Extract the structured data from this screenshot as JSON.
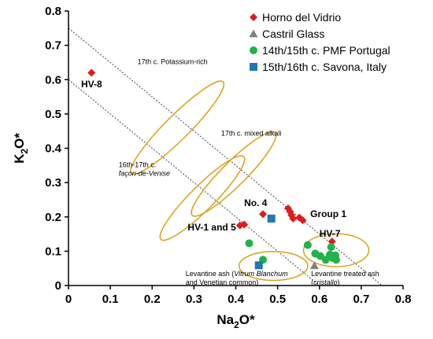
{
  "chart_data": {
    "type": "scatter",
    "xlim": [
      0,
      0.8
    ],
    "ylim": [
      0,
      0.8
    ],
    "xticks": [
      "0",
      "0.1",
      "0.2",
      "0.3",
      "0.4",
      "0.5",
      "0.6",
      "0.7",
      "0.8"
    ],
    "yticks": [
      "0",
      "0.1",
      "0.2",
      "0.3",
      "0.4",
      "0.5",
      "0.6",
      "0.7",
      "0.8"
    ],
    "xlabel": {
      "main": "Na",
      "sub": "2",
      "tail": "O*"
    },
    "ylabel": {
      "main": "K",
      "sub": "2",
      "tail": "O*"
    },
    "grid": false,
    "legend_position": "top-right",
    "series": [
      {
        "name": "Horno del Vidrio",
        "marker": "diamond",
        "color": "#e31a1c",
        "points": [
          {
            "x": 0.055,
            "y": 0.62
          },
          {
            "x": 0.41,
            "y": 0.175
          },
          {
            "x": 0.42,
            "y": 0.178
          },
          {
            "x": 0.465,
            "y": 0.208
          },
          {
            "x": 0.525,
            "y": 0.225
          },
          {
            "x": 0.53,
            "y": 0.215
          },
          {
            "x": 0.533,
            "y": 0.205
          },
          {
            "x": 0.537,
            "y": 0.195
          },
          {
            "x": 0.552,
            "y": 0.198
          },
          {
            "x": 0.56,
            "y": 0.19
          },
          {
            "x": 0.63,
            "y": 0.128
          }
        ]
      },
      {
        "name": "Castril Glass",
        "marker": "triangle",
        "color": "#808080",
        "points": [
          {
            "x": 0.588,
            "y": 0.058
          }
        ]
      },
      {
        "name": "14th/15th c. PMF Portugal",
        "marker": "circle",
        "color": "#22b14c",
        "points": [
          {
            "x": 0.432,
            "y": 0.123
          },
          {
            "x": 0.465,
            "y": 0.075
          },
          {
            "x": 0.572,
            "y": 0.118
          },
          {
            "x": 0.59,
            "y": 0.093
          },
          {
            "x": 0.602,
            "y": 0.086
          },
          {
            "x": 0.615,
            "y": 0.075
          },
          {
            "x": 0.625,
            "y": 0.09
          },
          {
            "x": 0.628,
            "y": 0.112
          },
          {
            "x": 0.632,
            "y": 0.08
          },
          {
            "x": 0.638,
            "y": 0.088
          },
          {
            "x": 0.64,
            "y": 0.075
          }
        ]
      },
      {
        "name": "15th/16th c. Savona, Italy",
        "marker": "square",
        "color": "#1f77b4",
        "points": [
          {
            "x": 0.485,
            "y": 0.195
          },
          {
            "x": 0.455,
            "y": 0.059
          }
        ]
      }
    ],
    "reference_lines": [
      {
        "p1": [
          0,
          0.75
        ],
        "p2": [
          0.75,
          0
        ]
      },
      {
        "p1": [
          0,
          0.6
        ],
        "p2": [
          0.6,
          0
        ]
      }
    ],
    "regions": [
      {
        "cx": 0.26,
        "cy": 0.46,
        "rx": 0.155,
        "ry": 0.035,
        "angle_deg": -45
      },
      {
        "cx": 0.395,
        "cy": 0.325,
        "rx": 0.14,
        "ry": 0.035,
        "angle_deg": -45
      },
      {
        "cx": 0.32,
        "cy": 0.255,
        "rx": 0.14,
        "ry": 0.035,
        "angle_deg": -45
      },
      {
        "cx": 0.49,
        "cy": 0.057,
        "rx": 0.082,
        "ry": 0.042,
        "angle_deg": 0
      },
      {
        "cx": 0.64,
        "cy": 0.103,
        "rx": 0.078,
        "ry": 0.048,
        "angle_deg": 0
      }
    ],
    "annotations": [
      {
        "lines": [
          "17th c. Potassium-rich"
        ],
        "x": 0.165,
        "y": 0.645,
        "style": "small"
      },
      {
        "lines": [
          "17th c. mixed alkali"
        ],
        "x": 0.365,
        "y": 0.437,
        "style": "small"
      },
      {
        "lines": [
          "16th-17th c.",
          "façon-de-Venise"
        ],
        "x": 0.12,
        "y": 0.345,
        "style": "small",
        "italic_line": 1
      },
      {
        "lines": [
          "No. 4"
        ],
        "x": 0.42,
        "y": 0.232,
        "style": "bold"
      },
      {
        "lines": [
          "Group 1"
        ],
        "x": 0.578,
        "y": 0.2,
        "style": "bold"
      },
      {
        "lines": [
          "HV-1 and 5"
        ],
        "x": 0.285,
        "y": 0.16,
        "style": "bold"
      },
      {
        "lines": [
          "HV-7"
        ],
        "x": 0.6,
        "y": 0.142,
        "style": "bold"
      },
      {
        "lines": [
          "HV-8"
        ],
        "x": 0.03,
        "y": 0.578,
        "style": "bold"
      },
      {
        "lines": [
          "Levantine ash (Vitrum Blanchum",
          "and Venetian common)"
        ],
        "x": 0.28,
        "y": 0.028,
        "style": "small",
        "italic_spans": [
          "Vitrum Blanchum"
        ]
      },
      {
        "lines": [
          "Levantine treated ash",
          "(cristallo)"
        ],
        "x": 0.58,
        "y": 0.028,
        "style": "small",
        "italic_spans": [
          "cristallo"
        ]
      }
    ]
  }
}
